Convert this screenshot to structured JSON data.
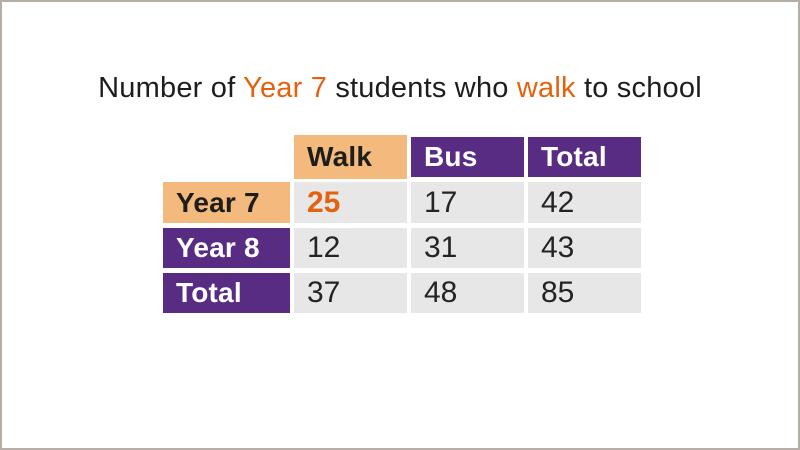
{
  "frame": {
    "background": "#ffffff",
    "border_color": "#b6afa7"
  },
  "title": {
    "full_text": "Number of Year 7 students who walk to school",
    "accent_color": "#e4620f",
    "text_color": "#1d1d1b",
    "parts": [
      {
        "text": "Number of "
      },
      {
        "text": "Year 7",
        "accent": true
      },
      {
        "text": " students who "
      },
      {
        "text": "walk",
        "accent": true
      },
      {
        "text": " to school"
      }
    ]
  },
  "table": {
    "corner_label": "",
    "col_headers": [
      {
        "label": "Walk",
        "style": "orange",
        "highlighted": true
      },
      {
        "label": "Bus",
        "style": "purple",
        "highlighted": false
      },
      {
        "label": "Total",
        "style": "purple",
        "highlighted": false
      }
    ],
    "rows": [
      {
        "header": "Year 7",
        "style": "orange",
        "values": [
          "25",
          "17",
          "42"
        ],
        "accent_value_index": 0
      },
      {
        "header": "Year 8",
        "style": "purple",
        "values": [
          "12",
          "31",
          "43"
        ],
        "accent_value_index": null
      },
      {
        "header": "Total",
        "style": "purple",
        "values": [
          "37",
          "48",
          "85"
        ],
        "accent_value_index": null
      }
    ],
    "colors": {
      "header_orange": "#f3b97d",
      "header_purple": "#582c83",
      "cell_gray": "#e8e7e7",
      "accent_text": "#e4620f",
      "dark_text": "#1d1d1b"
    }
  },
  "chart_data": {
    "type": "table",
    "title": "Number of Year 7 students who walk to school",
    "columns": [
      "",
      "Walk",
      "Bus",
      "Total"
    ],
    "rows": [
      [
        "Year 7",
        25,
        17,
        42
      ],
      [
        "Year 8",
        12,
        31,
        43
      ],
      [
        "Total",
        37,
        48,
        85
      ]
    ],
    "highlighted_cell": {
      "row": "Year 7",
      "column": "Walk",
      "value": 25
    }
  }
}
